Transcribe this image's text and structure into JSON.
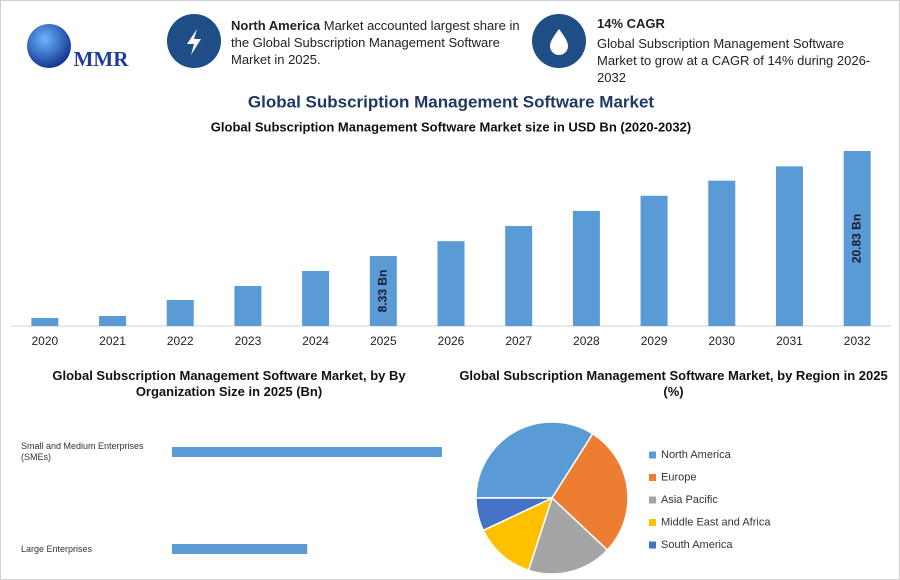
{
  "header": {
    "logo": "MMR",
    "highlights": [
      {
        "title": "North America",
        "text": "Market accounted largest share in the Global Subscription Management Software Market in 2025."
      },
      {
        "title": "14% CAGR",
        "text": "Global Subscription Management Software Market to grow at a CAGR of 14% during 2026-2032"
      }
    ]
  },
  "title": "Global Subscription Management Software Market",
  "chart_data": [
    {
      "type": "bar",
      "title": "Global Subscription Management Software Market size in USD Bn (2020-2032)",
      "categories": [
        "2020",
        "2021",
        "2022",
        "2023",
        "2024",
        "2025",
        "2026",
        "2027",
        "2028",
        "2029",
        "2030",
        "2031",
        "2032"
      ],
      "values": [
        0.95,
        1.19,
        3.1,
        4.76,
        6.55,
        8.33,
        10.1,
        11.9,
        13.7,
        15.5,
        17.3,
        19.0,
        20.83
      ],
      "value_labels": [
        null,
        null,
        null,
        null,
        null,
        "8.33 Bn",
        null,
        null,
        null,
        null,
        null,
        null,
        "20.83 Bn"
      ],
      "color": "#5b9bd5"
    },
    {
      "type": "hbar",
      "title": "Global Subscription Management Software Market, by By Organization Size in 2025 (Bn)",
      "categories": [
        "Small and Medium Enterprises (SMEs)",
        "Large Enterprises"
      ],
      "values": [
        5.55,
        2.78
      ],
      "color": "#5b9bd5"
    },
    {
      "type": "pie",
      "title": "Global Subscription Management Software Market, by Region in 2025 (%)",
      "categories": [
        "North America",
        "Europe",
        "Asia Pacific",
        "Middle East and Africa",
        "South America"
      ],
      "values": [
        34,
        28,
        18,
        13,
        7
      ],
      "colors": [
        "#5b9bd5",
        "#ed7d31",
        "#a5a5a5",
        "#ffc000",
        "#4472c4"
      ],
      "legend": "right"
    }
  ]
}
